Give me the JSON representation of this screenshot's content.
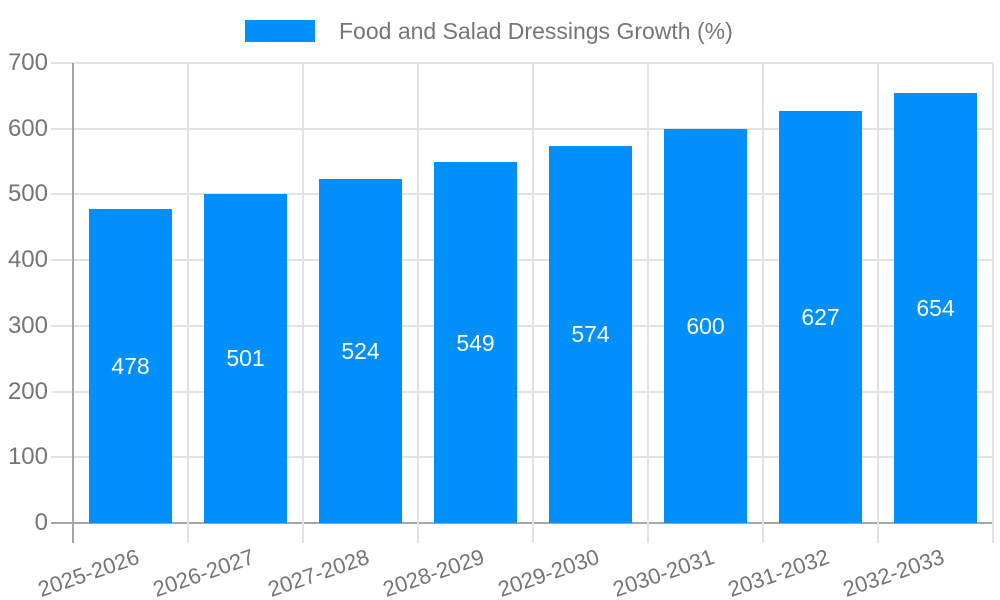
{
  "colors": {
    "series_blue": "#008FFB",
    "grid": "#e3e3e3",
    "axis": "#a6a6a6",
    "label_text": "#757575",
    "value_text": "#ffffff",
    "background": "#ffffff"
  },
  "legend": {
    "items": [
      {
        "label": "Food and Salad Dressings Growth (%)",
        "color": "#008FFB"
      }
    ]
  },
  "chart_data": {
    "type": "bar",
    "title": "Food and Salad Dressings Growth (%)",
    "categories": [
      "2025-2026",
      "2026-2027",
      "2027-2028",
      "2028-2029",
      "2029-2030",
      "2030-2031",
      "2031-2032",
      "2032-2033"
    ],
    "series": [
      {
        "name": "Food and Salad Dressings Growth (%)",
        "values": [
          478,
          501,
          524,
          549,
          574,
          600,
          627,
          654
        ]
      }
    ],
    "xlabel": "",
    "ylabel": "",
    "ylim": [
      0,
      700
    ],
    "yticks": [
      0,
      100,
      200,
      300,
      400,
      500,
      600,
      700
    ],
    "grid": true,
    "legend_position": "top",
    "bar_value_labels": true,
    "x_label_rotation_deg": -19
  }
}
